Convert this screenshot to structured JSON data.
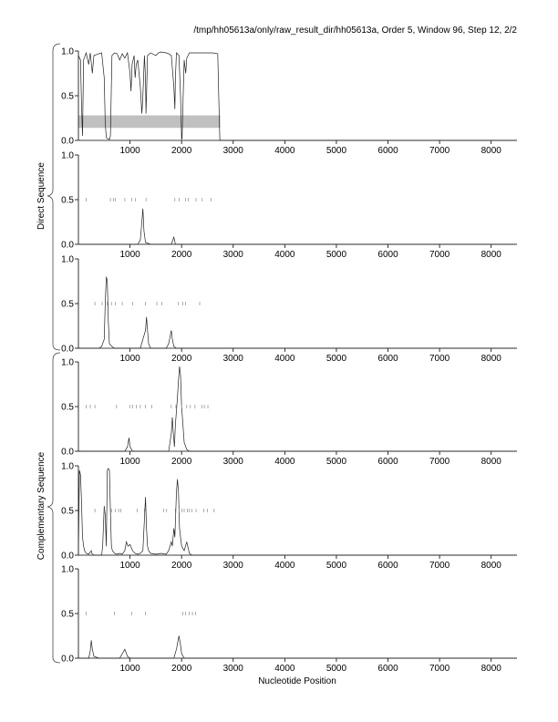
{
  "header": "/tmp/hh05613a/only/raw_result_dir/hh05613a, Order 5, Window 96, Step 12, 2/2",
  "xlabel": "Nucleotide Position",
  "group_labels": [
    "Direct Sequence",
    "Complementary Sequence"
  ],
  "chart_data": {
    "type": "line",
    "xlim": [
      0,
      8500
    ],
    "ylim": [
      0,
      1
    ],
    "x_ticks": [
      1000,
      2000,
      3000,
      4000,
      5000,
      6000,
      7000,
      8000
    ],
    "y_ticks": [
      "0.0",
      "0.5",
      "1.0"
    ],
    "highlight_band": {
      "panel": 0,
      "x": [
        0,
        2750
      ],
      "y": [
        0.14,
        0.28
      ]
    },
    "panels": [
      {
        "group": "Direct Sequence",
        "series": [
          [
            0,
            0.95
          ],
          [
            40,
            0.9
          ],
          [
            60,
            0.4
          ],
          [
            80,
            0.05
          ],
          [
            100,
            0.9
          ],
          [
            150,
            0.98
          ],
          [
            200,
            0.85
          ],
          [
            230,
            0.98
          ],
          [
            270,
            0.75
          ],
          [
            300,
            0.95
          ],
          [
            400,
            0.97
          ],
          [
            450,
            0.98
          ],
          [
            500,
            0.7
          ],
          [
            520,
            0.2
          ],
          [
            540,
            0.03
          ],
          [
            560,
            0.02
          ],
          [
            600,
            0.01
          ],
          [
            620,
            0.05
          ],
          [
            650,
            0.95
          ],
          [
            700,
            0.98
          ],
          [
            750,
            0.97
          ],
          [
            800,
            0.9
          ],
          [
            850,
            0.97
          ],
          [
            900,
            0.92
          ],
          [
            950,
            0.98
          ],
          [
            1000,
            0.75
          ],
          [
            1020,
            0.55
          ],
          [
            1040,
            0.85
          ],
          [
            1080,
            0.95
          ],
          [
            1100,
            0.7
          ],
          [
            1120,
            0.85
          ],
          [
            1150,
            0.9
          ],
          [
            1200,
            0.6
          ],
          [
            1230,
            0.3
          ],
          [
            1250,
            0.5
          ],
          [
            1280,
            0.95
          ],
          [
            1300,
            0.7
          ],
          [
            1310,
            0.3
          ],
          [
            1320,
            0.5
          ],
          [
            1340,
            0.95
          ],
          [
            1400,
            0.98
          ],
          [
            1500,
            0.95
          ],
          [
            1550,
            0.98
          ],
          [
            1600,
            0.99
          ],
          [
            1700,
            0.98
          ],
          [
            1750,
            0.97
          ],
          [
            1800,
            0.95
          ],
          [
            1850,
            0.6
          ],
          [
            1870,
            0.35
          ],
          [
            1880,
            0.7
          ],
          [
            1900,
            0.98
          ],
          [
            1950,
            0.95
          ],
          [
            1980,
            0.5
          ],
          [
            2000,
            0.01
          ],
          [
            2010,
            0.02
          ],
          [
            2030,
            0.5
          ],
          [
            2050,
            0.9
          ],
          [
            2080,
            0.75
          ],
          [
            2100,
            0.92
          ],
          [
            2150,
            0.98
          ],
          [
            2200,
            0.98
          ],
          [
            2300,
            0.98
          ],
          [
            2400,
            0.98
          ],
          [
            2500,
            0.98
          ],
          [
            2600,
            0.98
          ],
          [
            2700,
            0.97
          ],
          [
            2720,
            0.5
          ],
          [
            2740,
            0.01
          ],
          [
            2760,
            0.0
          ],
          [
            8500,
            0.0
          ]
        ],
        "ticks": []
      },
      {
        "group": "Direct Sequence",
        "series": [
          [
            0,
            0.0
          ],
          [
            1150,
            0.0
          ],
          [
            1200,
            0.05
          ],
          [
            1230,
            0.25
          ],
          [
            1250,
            0.4
          ],
          [
            1270,
            0.15
          ],
          [
            1300,
            0.02
          ],
          [
            1400,
            0.0
          ],
          [
            1800,
            0.0
          ],
          [
            1850,
            0.08
          ],
          [
            1880,
            0.0
          ],
          [
            8500,
            0.0
          ]
        ],
        "ticks": [
          {
            "x": [
              150,
              620,
              680,
              720,
              900,
              1030,
              1100,
              1310,
              1870,
              1950,
              2080,
              2130,
              2280,
              2400,
              2570
            ],
            "y": 0.5
          }
        ]
      },
      {
        "group": "Direct Sequence",
        "series": [
          [
            0,
            0.0
          ],
          [
            400,
            0.0
          ],
          [
            450,
            0.02
          ],
          [
            500,
            0.1
          ],
          [
            520,
            0.5
          ],
          [
            540,
            0.8
          ],
          [
            560,
            0.75
          ],
          [
            580,
            0.3
          ],
          [
            600,
            0.05
          ],
          [
            650,
            0.02
          ],
          [
            700,
            0.0
          ],
          [
            1200,
            0.0
          ],
          [
            1300,
            0.2
          ],
          [
            1320,
            0.35
          ],
          [
            1340,
            0.2
          ],
          [
            1360,
            0.05
          ],
          [
            1400,
            0.0
          ],
          [
            1700,
            0.0
          ],
          [
            1750,
            0.05
          ],
          [
            1800,
            0.2
          ],
          [
            1820,
            0.1
          ],
          [
            1850,
            0.02
          ],
          [
            1900,
            0.0
          ],
          [
            8500,
            0.0
          ]
        ],
        "ticks": [
          {
            "x": [
              320,
              460,
              560,
              640,
              720,
              850,
              1050,
              1300,
              1520,
              1620,
              1940,
              2020,
              2080,
              2350
            ],
            "y": 0.5
          }
        ]
      },
      {
        "group": "Complementary Sequence",
        "series": [
          [
            0,
            0.0
          ],
          [
            900,
            0.0
          ],
          [
            950,
            0.05
          ],
          [
            980,
            0.15
          ],
          [
            1000,
            0.05
          ],
          [
            1050,
            0.0
          ],
          [
            1750,
            0.0
          ],
          [
            1800,
            0.2
          ],
          [
            1820,
            0.38
          ],
          [
            1840,
            0.2
          ],
          [
            1860,
            0.05
          ],
          [
            1880,
            0.3
          ],
          [
            1920,
            0.6
          ],
          [
            1940,
            0.8
          ],
          [
            1960,
            0.95
          ],
          [
            1980,
            0.85
          ],
          [
            2000,
            0.5
          ],
          [
            2050,
            0.1
          ],
          [
            2100,
            0.02
          ],
          [
            2150,
            0.0
          ],
          [
            8500,
            0.0
          ]
        ],
        "ticks": [
          {
            "x": [
              150,
              230,
              320,
              740,
              1000,
              1050,
              1120,
              1200,
              1300,
              1420,
              1800,
              1890,
              2000,
              2100,
              2170,
              2260,
              2390,
              2440,
              2510
            ],
            "y": 0.5
          }
        ]
      },
      {
        "group": "Complementary Sequence",
        "series": [
          [
            0,
            0.0
          ],
          [
            20,
            0.95
          ],
          [
            40,
            0.9
          ],
          [
            60,
            0.6
          ],
          [
            80,
            0.2
          ],
          [
            100,
            0.1
          ],
          [
            120,
            0.05
          ],
          [
            150,
            0.02
          ],
          [
            200,
            0.01
          ],
          [
            250,
            0.05
          ],
          [
            260,
            0.02
          ],
          [
            300,
            0.0
          ],
          [
            450,
            0.0
          ],
          [
            470,
            0.1
          ],
          [
            500,
            0.55
          ],
          [
            520,
            0.45
          ],
          [
            540,
            0.1
          ],
          [
            560,
            0.95
          ],
          [
            580,
            0.97
          ],
          [
            600,
            0.95
          ],
          [
            620,
            0.5
          ],
          [
            640,
            0.1
          ],
          [
            660,
            0.05
          ],
          [
            700,
            0.02
          ],
          [
            750,
            0.01
          ],
          [
            800,
            0.02
          ],
          [
            850,
            0.01
          ],
          [
            900,
            0.05
          ],
          [
            930,
            0.15
          ],
          [
            960,
            0.1
          ],
          [
            1000,
            0.12
          ],
          [
            1050,
            0.05
          ],
          [
            1100,
            0.02
          ],
          [
            1150,
            0.01
          ],
          [
            1200,
            0.02
          ],
          [
            1250,
            0.05
          ],
          [
            1300,
            0.65
          ],
          [
            1320,
            0.3
          ],
          [
            1340,
            0.1
          ],
          [
            1360,
            0.05
          ],
          [
            1400,
            0.02
          ],
          [
            1500,
            0.01
          ],
          [
            1600,
            0.02
          ],
          [
            1700,
            0.01
          ],
          [
            1750,
            0.05
          ],
          [
            1800,
            0.15
          ],
          [
            1820,
            0.1
          ],
          [
            1850,
            0.3
          ],
          [
            1870,
            0.2
          ],
          [
            1900,
            0.7
          ],
          [
            1920,
            0.85
          ],
          [
            1940,
            0.7
          ],
          [
            1960,
            0.3
          ],
          [
            2000,
            0.1
          ],
          [
            2050,
            0.05
          ],
          [
            2100,
            0.15
          ],
          [
            2150,
            0.02
          ],
          [
            2200,
            0.0
          ],
          [
            8500,
            0.0
          ]
        ],
        "ticks": [
          {
            "x": [
              320,
              500,
              640,
              720,
              780,
              820,
              1140,
              1280,
              1650,
              1710,
              1880,
              1950,
              2010,
              2050,
              2110,
              2150,
              2200,
              2280,
              2430,
              2500,
              2630
            ],
            "y": 0.5
          }
        ]
      },
      {
        "group": "Complementary Sequence",
        "series": [
          [
            0,
            0.0
          ],
          [
            200,
            0.0
          ],
          [
            230,
            0.08
          ],
          [
            250,
            0.2
          ],
          [
            270,
            0.1
          ],
          [
            300,
            0.02
          ],
          [
            400,
            0.0
          ],
          [
            800,
            0.0
          ],
          [
            850,
            0.05
          ],
          [
            900,
            0.1
          ],
          [
            950,
            0.02
          ],
          [
            1000,
            0.0
          ],
          [
            1850,
            0.0
          ],
          [
            1900,
            0.1
          ],
          [
            1950,
            0.25
          ],
          [
            1980,
            0.15
          ],
          [
            2000,
            0.05
          ],
          [
            2050,
            0.0
          ],
          [
            8500,
            0.0
          ]
        ],
        "ticks": [
          {
            "x": [
              150,
              700,
              1030,
              1300,
              2020,
              2080,
              2150,
              2210,
              2270
            ],
            "y": 0.5
          }
        ]
      }
    ]
  }
}
